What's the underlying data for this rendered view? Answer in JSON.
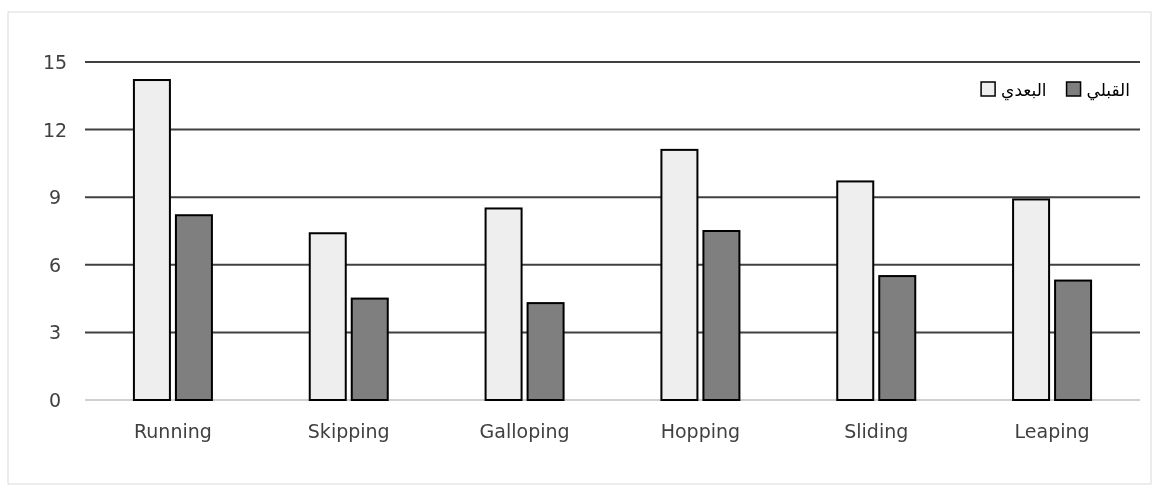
{
  "chart_data": {
    "type": "bar",
    "categories": [
      "Running",
      "Skipping",
      "Galloping",
      "Hopping",
      "Sliding",
      "Leaping"
    ],
    "series": [
      {
        "name": "البعدي",
        "color": "#eeeeee",
        "values": [
          14.2,
          7.4,
          8.5,
          11.1,
          9.7,
          8.9
        ]
      },
      {
        "name": "القبلي",
        "color": "#7f7f7f",
        "values": [
          8.2,
          4.5,
          4.3,
          7.5,
          5.5,
          5.3
        ]
      }
    ],
    "ylim": [
      0,
      15
    ],
    "yticks": [
      0,
      3,
      6,
      9,
      12,
      15
    ],
    "grid": "y",
    "legend": "top right"
  }
}
